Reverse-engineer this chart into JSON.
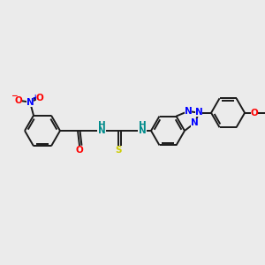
{
  "background_color": "#ebebeb",
  "bond_color": "#1a1a1a",
  "atom_colors": {
    "N": "#0000ff",
    "O": "#ff0000",
    "S": "#cccc00",
    "H": "#008b8b",
    "C": "#1a1a1a"
  },
  "figsize": [
    3.0,
    3.0
  ],
  "dpi": 100,
  "lw": 1.4,
  "fs": 7.5
}
